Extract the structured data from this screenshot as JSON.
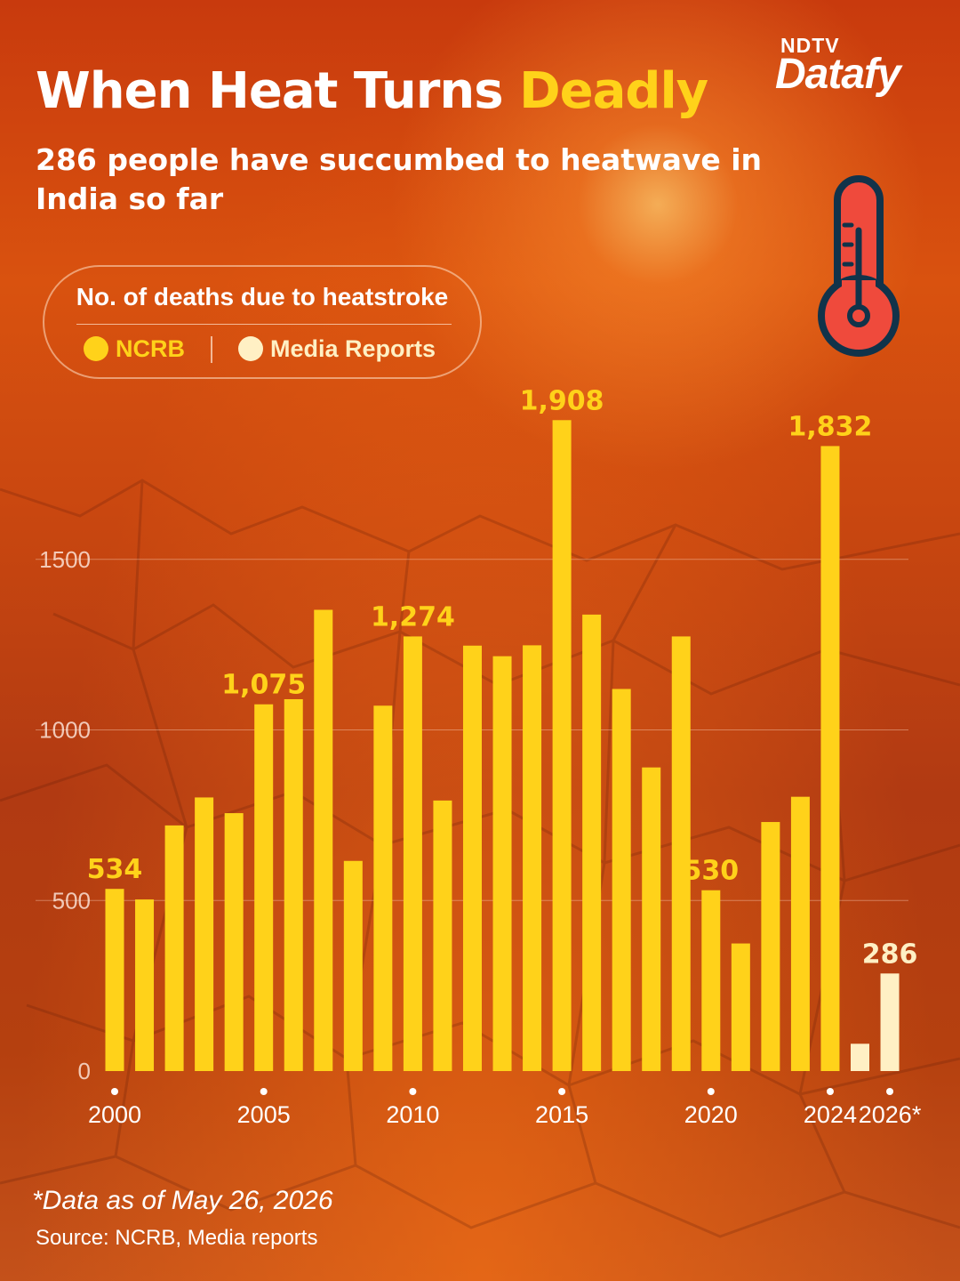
{
  "header": {
    "title_main": "When Heat Turns",
    "title_highlight": "Deadly",
    "subtitle": "286 people have succumbed to heatwave in India so far"
  },
  "brand": {
    "top": "NDTV",
    "main": "Datafy"
  },
  "legend": {
    "title": "No. of deaths due to heatstroke",
    "items": [
      {
        "label": "NCRB",
        "color": "#ffd21a"
      },
      {
        "label": "Media Reports",
        "color": "#fff0c4"
      }
    ]
  },
  "thermometer_icon": "thermometer-icon",
  "chart_data": {
    "type": "bar",
    "categories": [
      "2000",
      "2001",
      "2002",
      "2003",
      "2004",
      "2005",
      "2006",
      "2007",
      "2008",
      "2009",
      "2010",
      "2011",
      "2012",
      "2013",
      "2014",
      "2015",
      "2016",
      "2017",
      "2018",
      "2019",
      "2020",
      "2021",
      "2022",
      "2023",
      "2024",
      "2025",
      "2026*"
    ],
    "series": [
      {
        "name": "NCRB",
        "color": "#ffd21a",
        "values": [
          534,
          503,
          720,
          802,
          756,
          1075,
          1090,
          1352,
          616,
          1071,
          1274,
          793,
          1247,
          1216,
          1248,
          1908,
          1338,
          1120,
          890,
          1274,
          530,
          374,
          730,
          804,
          1832,
          null,
          null
        ]
      },
      {
        "name": "Media Reports",
        "color": "#fff0c4",
        "values": [
          null,
          null,
          null,
          null,
          null,
          null,
          null,
          null,
          null,
          null,
          null,
          null,
          null,
          null,
          null,
          null,
          null,
          null,
          null,
          null,
          null,
          null,
          null,
          null,
          null,
          80,
          286
        ]
      }
    ],
    "labeled_values": [
      {
        "category": "2000",
        "text": "534"
      },
      {
        "category": "2005",
        "text": "1,075"
      },
      {
        "category": "2010",
        "text": "1,274"
      },
      {
        "category": "2015",
        "text": "1,908"
      },
      {
        "category": "2020",
        "text": "530"
      },
      {
        "category": "2024",
        "text": "1,832"
      },
      {
        "category": "2026*",
        "text": "286"
      }
    ],
    "xtick_labels": [
      "2000",
      "2005",
      "2010",
      "2015",
      "2020",
      "2024",
      "2026*"
    ],
    "yticks": [
      0,
      500,
      1000,
      1500
    ],
    "ylim": [
      0,
      2000
    ],
    "grid": true,
    "title": "",
    "xlabel": "",
    "ylabel": ""
  },
  "footer": {
    "note": "*Data as of May 26, 2026",
    "source": "Source: NCRB, Media reports"
  }
}
